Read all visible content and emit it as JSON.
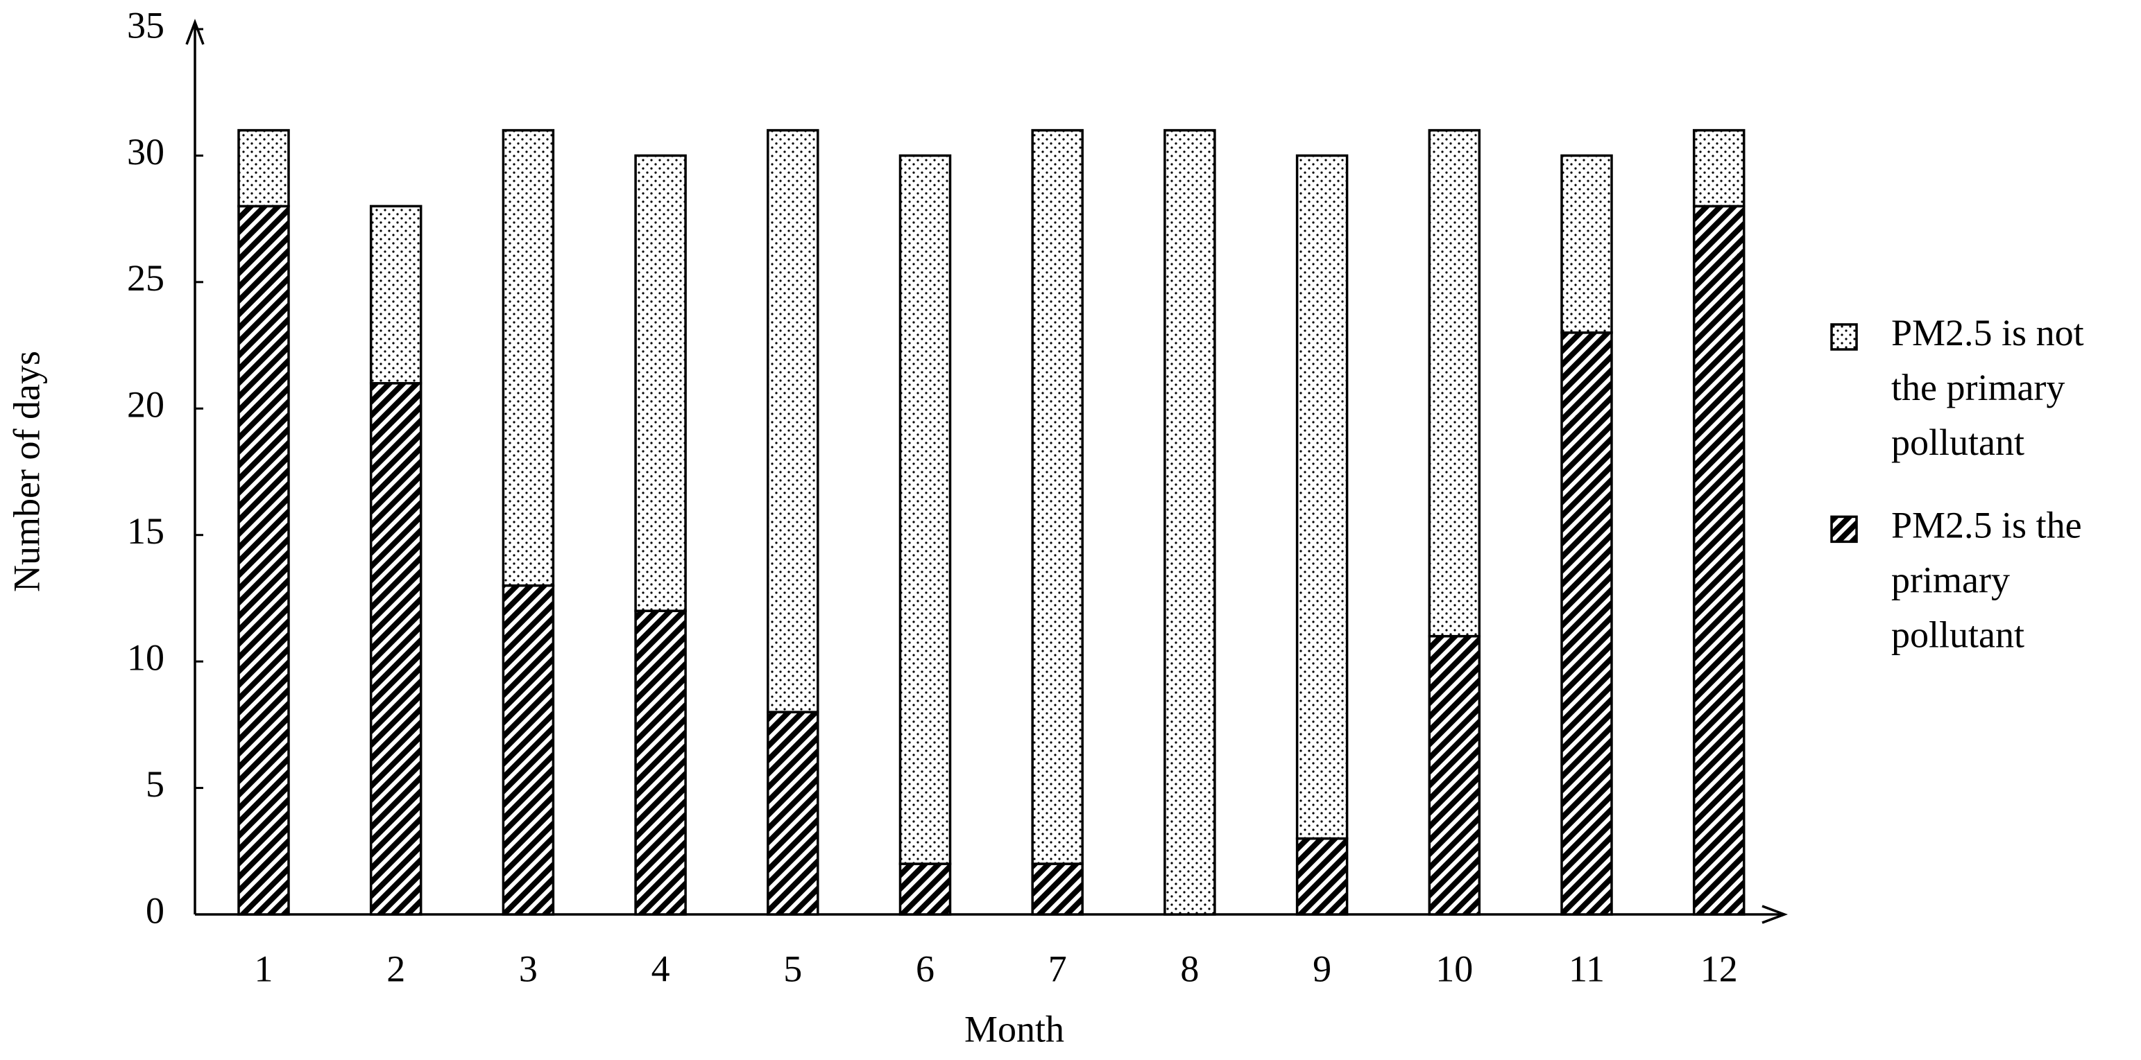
{
  "chart_data": {
    "type": "stacked-bar",
    "x_label": "Month",
    "y_label": "Number of days",
    "categories": [
      "1",
      "2",
      "3",
      "4",
      "5",
      "6",
      "7",
      "8",
      "9",
      "10",
      "11",
      "12"
    ],
    "series": [
      {
        "name": "PM2.5 is not the primary pollutant",
        "pattern": "dots",
        "color": "#000000",
        "values": [
          3,
          7,
          18,
          18,
          23,
          28,
          29,
          31,
          27,
          20,
          7,
          3
        ]
      },
      {
        "name": "PM2.5 is the primary pollutant",
        "pattern": "hatch",
        "color": "#000000",
        "values": [
          28,
          21,
          13,
          12,
          8,
          2,
          2,
          0,
          3,
          11,
          23,
          28
        ]
      }
    ],
    "ylim": [
      0,
      35
    ],
    "yticks": [
      0,
      5,
      10,
      15,
      20,
      25,
      30,
      35
    ],
    "grid": false,
    "legend": "right"
  }
}
